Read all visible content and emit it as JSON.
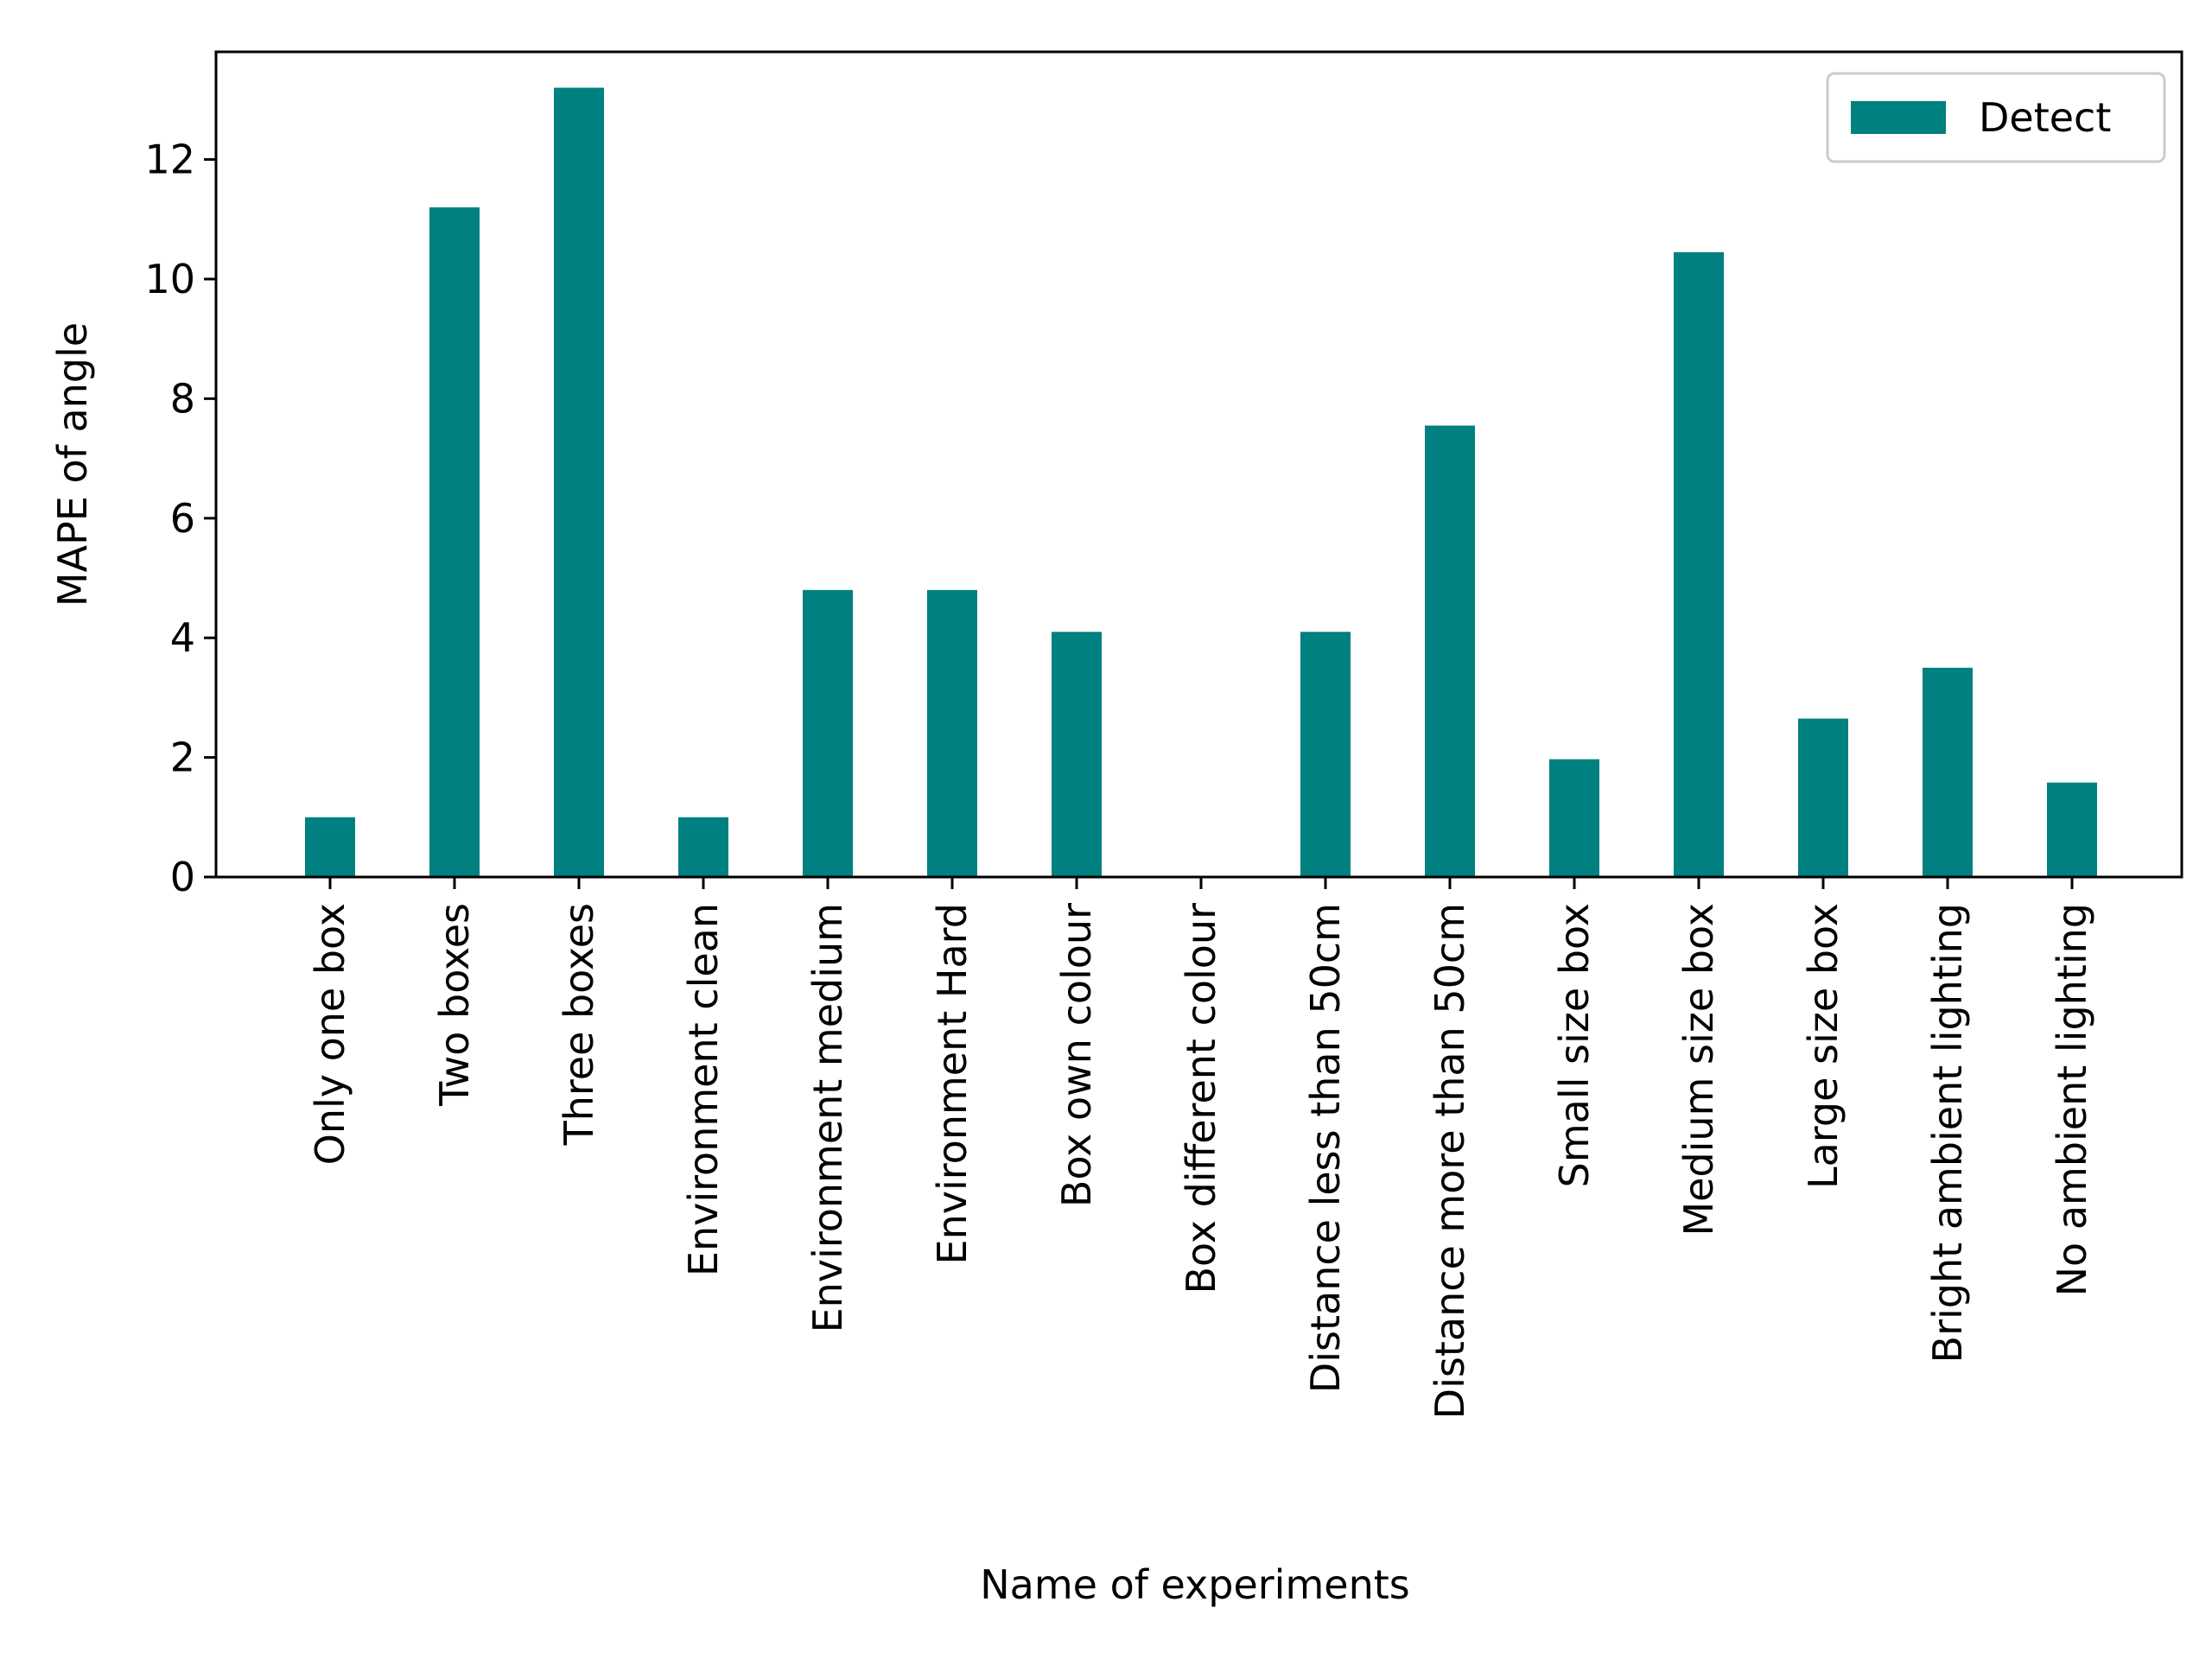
{
  "chart_data": {
    "type": "bar",
    "title": "",
    "xlabel": "Name of experiments",
    "ylabel": "MAPE of angle",
    "categories": [
      "Only one box",
      "Two boxes",
      "Three boxes",
      "Environment clean",
      "Environment medium",
      "Environment Hard",
      "Box own colour",
      "Box different colour",
      "Distance less than 50cm",
      "Distance more than 50cm",
      "Small size box",
      "Medium size box",
      "Large size box",
      "Bright ambient lighting",
      "No  ambient lighting"
    ],
    "series": [
      {
        "name": "Detect",
        "color": "#008080",
        "values": [
          1.0,
          11.2,
          13.2,
          1.0,
          4.8,
          4.8,
          4.1,
          0.0,
          4.1,
          7.55,
          1.97,
          10.45,
          2.65,
          3.5,
          1.58
        ]
      }
    ],
    "ylim": [
      0,
      13.8
    ],
    "yticks": [
      0,
      2,
      4,
      6,
      8,
      10,
      12
    ],
    "grid": false,
    "legend_position": "top-right"
  }
}
